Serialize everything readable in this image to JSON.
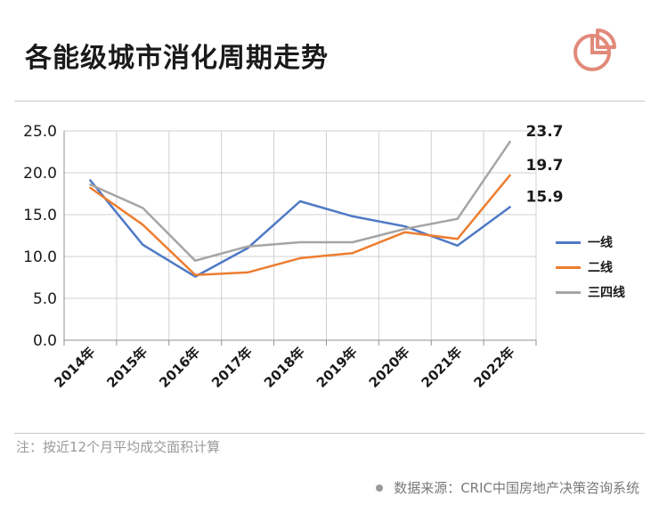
{
  "header": {
    "title": "各能级城市消化周期走势"
  },
  "logo_icon": "pie-chart-icon",
  "brand_color": "#e28a7a",
  "chart_data": {
    "type": "line",
    "title": "",
    "xlabel": "",
    "ylabel": "",
    "categories": [
      "2014年",
      "2015年",
      "2016年",
      "2017年",
      "2018年",
      "2019年",
      "2020年",
      "2021年",
      "2022年"
    ],
    "ylim": [
      0,
      25
    ],
    "yticks": [
      "0.0",
      "5.0",
      "10.0",
      "15.0",
      "20.0",
      "25.0"
    ],
    "grid": true,
    "legend_position": "right",
    "series": [
      {
        "name": "一线",
        "color": "#4e79c6",
        "values": [
          19.1,
          11.4,
          7.6,
          11.0,
          16.6,
          14.8,
          13.6,
          11.3,
          15.9
        ],
        "end_label": "15.9"
      },
      {
        "name": "二线",
        "color": "#ed7d31",
        "values": [
          18.2,
          13.8,
          7.8,
          8.1,
          9.8,
          10.4,
          12.9,
          12.1,
          19.7
        ],
        "end_label": "19.7"
      },
      {
        "name": "三四线",
        "color": "#a5a5a5",
        "values": [
          18.6,
          15.8,
          9.5,
          11.2,
          11.7,
          11.7,
          13.3,
          14.5,
          23.7
        ],
        "end_label": "23.7"
      }
    ]
  },
  "footer": {
    "note": "注：按近12个月平均成交面积计算",
    "source": "数据来源：CRIC中国房地产决策咨询系统"
  }
}
